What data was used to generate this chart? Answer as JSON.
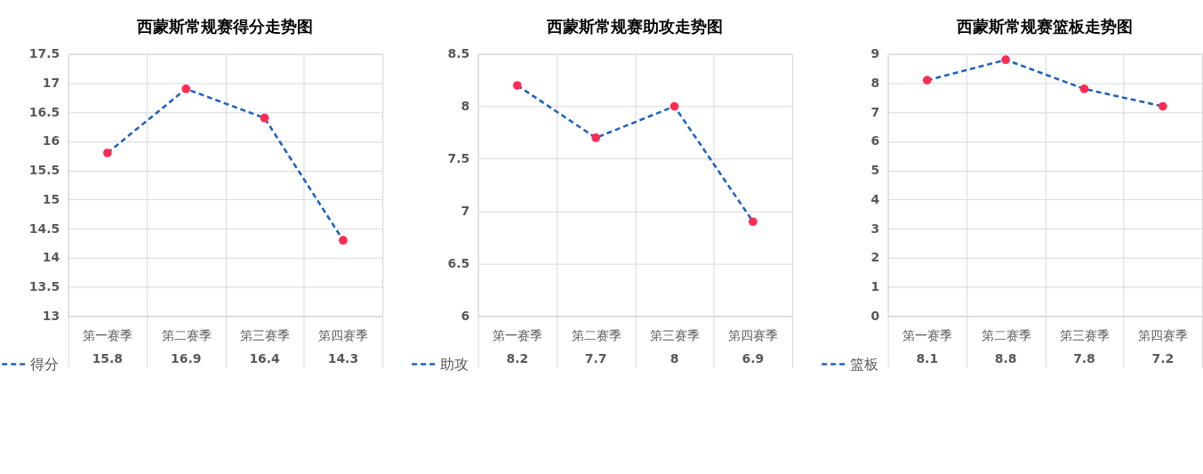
{
  "chart_data": [
    {
      "type": "line",
      "title": "西蒙斯常规赛得分走势图",
      "categories": [
        "第一赛季",
        "第二赛季",
        "第三赛季",
        "第四赛季"
      ],
      "series": [
        {
          "name": "得分",
          "color": "#2062c0",
          "colors": [
            "#fd2c54",
            "#fd2c54",
            "#fd2c54",
            "#fd2c54"
          ],
          "values": [
            15.8,
            16.9,
            16.4,
            14.3
          ]
        }
      ],
      "ylim": [
        13,
        17.5
      ],
      "yticks": [
        13,
        13.5,
        14,
        14.5,
        15,
        15.5,
        16,
        16.5,
        17,
        17.5
      ],
      "grid": true,
      "legend": "bottom left",
      "marker": "circle",
      "line_style": "dashed",
      "data_labels": true
    },
    {
      "type": "line",
      "title": "西蒙斯常规赛助攻走势图",
      "categories": [
        "第一赛季",
        "第二赛季",
        "第三赛季",
        "第四赛季"
      ],
      "series": [
        {
          "name": "助攻",
          "color": "#2062c0",
          "colors": [
            "#fd2c54",
            "#fd2c54",
            "#fd2c54",
            "#fd2c54"
          ],
          "values": [
            8.2,
            7.7,
            8,
            6.9
          ]
        }
      ],
      "ylim": [
        6,
        8.5
      ],
      "yticks": [
        6,
        6.5,
        7,
        7.5,
        8,
        8.5
      ],
      "grid": true,
      "legend": "bottom left",
      "marker": "circle",
      "line_style": "dashed",
      "data_labels": true
    },
    {
      "type": "line",
      "title": "西蒙斯常规赛篮板走势图",
      "categories": [
        "第一赛季",
        "第二赛季",
        "第三赛季",
        "第四赛季"
      ],
      "series": [
        {
          "name": "篮板",
          "color": "#2062c0",
          "colors": [
            "#fd2c54",
            "#fd2c54",
            "#fd2c54",
            "#fd2c54"
          ],
          "values": [
            8.1,
            8.8,
            7.8,
            7.2
          ]
        }
      ],
      "ylim": [
        0,
        9
      ],
      "yticks": [
        0,
        1,
        2,
        3,
        4,
        5,
        6,
        7,
        8,
        9
      ],
      "grid": true,
      "legend": "bottom left",
      "marker": "circle",
      "line_style": "dashed",
      "data_labels": true
    }
  ]
}
